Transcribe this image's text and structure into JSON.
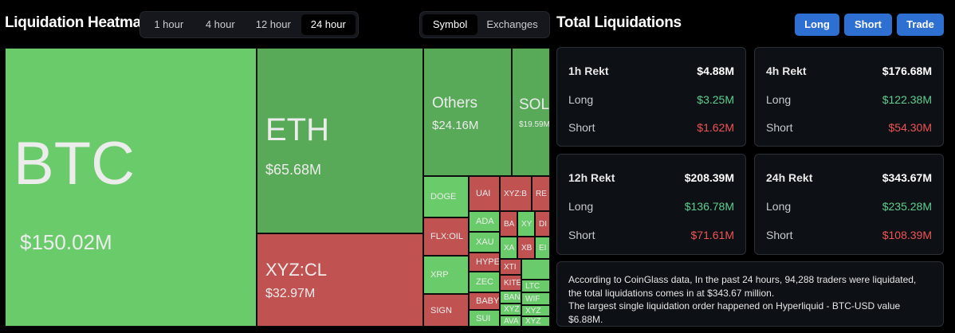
{
  "header": {
    "title": "Liquidation Heatmap",
    "time_tabs": [
      "1 hour",
      "4 hour",
      "12 hour",
      "24 hour"
    ],
    "active_time_tab": "24 hour",
    "view_tabs": [
      "Symbol",
      "Exchanges"
    ],
    "active_view_tab": "Symbol"
  },
  "heatmap": {
    "btc": {
      "symbol": "BTC",
      "value": "$150.02M"
    },
    "eth": {
      "symbol": "ETH",
      "value": "$65.68M"
    },
    "xyzcl": {
      "symbol": "XYZ:CL",
      "value": "$32.97M"
    },
    "others": {
      "symbol": "Others",
      "value": "$24.16M"
    },
    "sol": {
      "symbol": "SOL",
      "value": "$19.59M"
    },
    "small": [
      "DOGE",
      "UAI",
      "XYZ:B",
      "RE",
      "FLX:OIL",
      "ADA",
      "BA",
      "XY",
      "DI",
      "XAU",
      "XA",
      "XB",
      "EI",
      "XRP",
      "HYPE",
      "XTI",
      "ZEC",
      "KITE",
      "LTC",
      "BAN",
      "WIF",
      "SIGN",
      "BABY",
      "XYZ",
      "XYZ",
      "SUI",
      "AVA",
      "XYZ"
    ]
  },
  "total": {
    "title": "Total Liquidations",
    "buttons": [
      "Long",
      "Short",
      "Trade"
    ]
  },
  "cards": [
    {
      "title": "1h Rekt",
      "total": "$4.88M",
      "long_label": "Long",
      "long": "$3.25M",
      "short_label": "Short",
      "short": "$1.62M"
    },
    {
      "title": "4h Rekt",
      "total": "$176.68M",
      "long_label": "Long",
      "long": "$122.38M",
      "short_label": "Short",
      "short": "$54.30M"
    },
    {
      "title": "12h Rekt",
      "total": "$208.39M",
      "long_label": "Long",
      "long": "$136.78M",
      "short_label": "Short",
      "short": "$71.61M"
    },
    {
      "title": "24h Rekt",
      "total": "$343.67M",
      "long_label": "Long",
      "long": "$235.28M",
      "short_label": "Short",
      "short": "$108.39M"
    }
  ],
  "info": {
    "line1": "According to CoinGlass data, In the past 24 hours, 94,288 traders were liquidated, the total liquidations comes in at $343.67 million.",
    "line2": "The largest single liquidation order happened on Hyperliquid - BTC-USD value $6.88M."
  },
  "colors": {
    "accent": "#2e6fd2",
    "positive": "#5ecf8f",
    "negative": "#f05454",
    "long_tile": "#6acb6a",
    "short_tile": "#c05252"
  }
}
